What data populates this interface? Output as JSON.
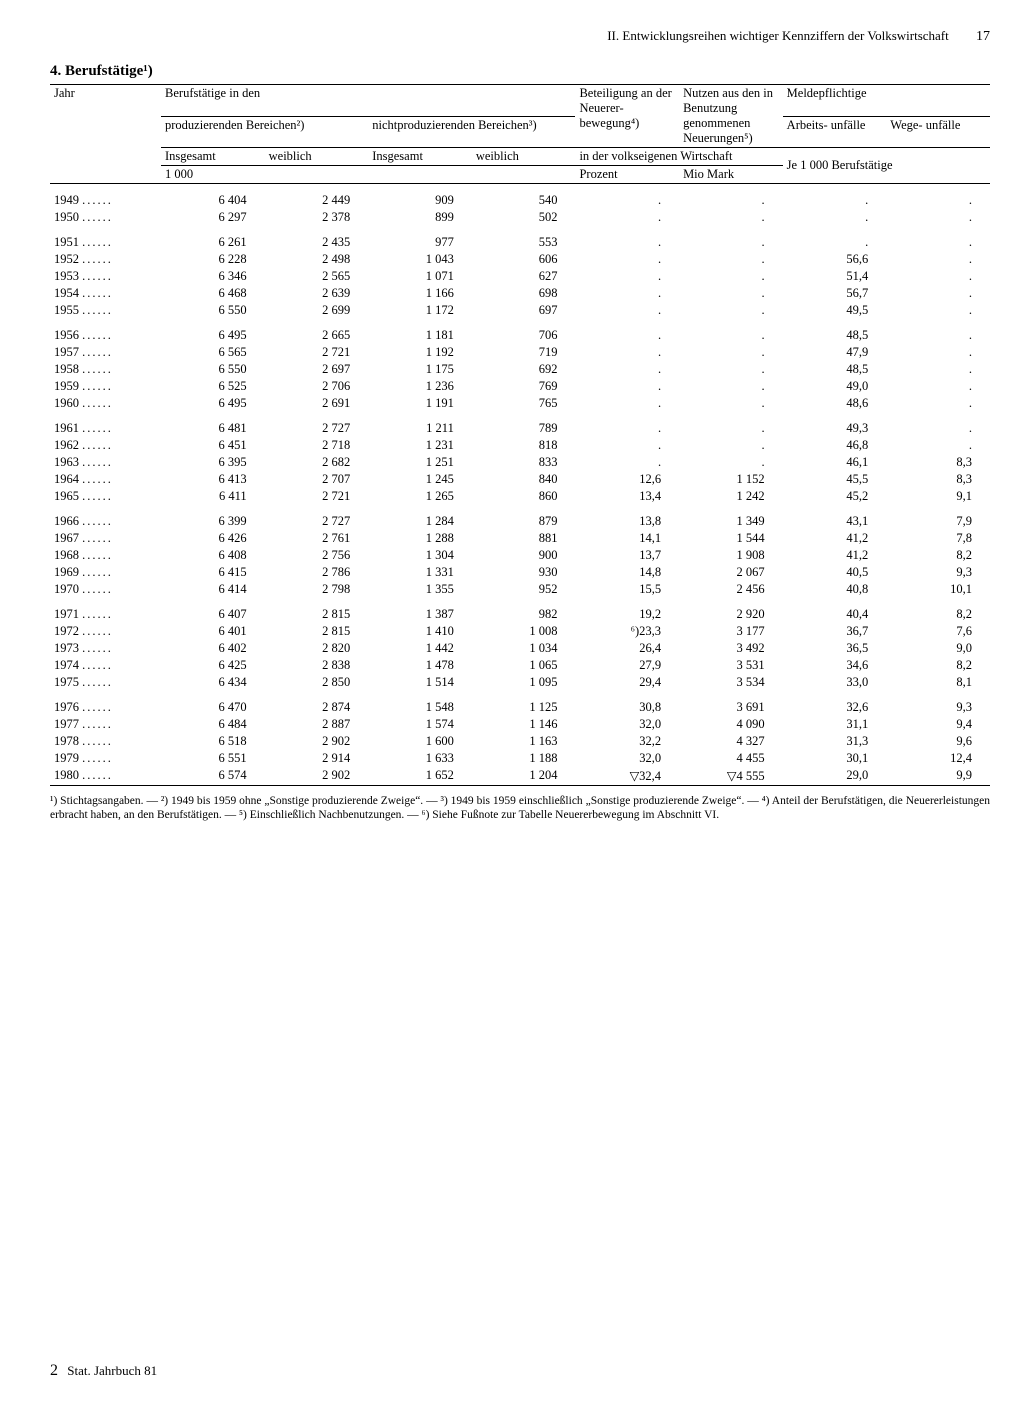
{
  "page": {
    "running_head": "II. Entwicklungsreihen wichtiger Kennziffern der Volkswirtschaft",
    "page_number": "17",
    "section_number": "4.",
    "section_title": "Berufstätige¹)",
    "footer_left": "Stat. Jahrbuch 81",
    "footer_prefix": "2"
  },
  "table": {
    "type": "table",
    "background_color": "#ffffff",
    "text_color": "#000000",
    "font_family": "Times New Roman",
    "body_fontsize": 12.5,
    "header": {
      "jahr": "Jahr",
      "berufst_in_den": "Berufstätige in den",
      "prod": "produzierenden Bereichen²)",
      "nichtprod": "nichtproduzierenden Bereichen³)",
      "insgesamt": "Insgesamt",
      "weiblich": "weiblich",
      "beteiligung": "Beteiligung an der Neuerer- bewegung⁴)",
      "nutzen": "Nutzen aus den in Benutzung genommenen Neuerungen⁵)",
      "meldepfl": "Meldepflichtige",
      "arbeitsunf": "Arbeits- unfälle",
      "wegeunf": "Wege- unfälle",
      "in_der_volks": "in der volkseigenen Wirtschaft",
      "tausend": "1 000",
      "prozent": "Prozent",
      "mio_mark": "Mio Mark",
      "je1000": "Je 1 000 Berufstätige"
    },
    "blocks": [
      [
        {
          "jahr": "1949",
          "p_ins": "6 404",
          "p_w": "2 449",
          "np_ins": "909",
          "np_w": "540",
          "bet": ".",
          "nutz": ".",
          "arb": ".",
          "weg": "."
        },
        {
          "jahr": "1950",
          "p_ins": "6 297",
          "p_w": "2 378",
          "np_ins": "899",
          "np_w": "502",
          "bet": ".",
          "nutz": ".",
          "arb": ".",
          "weg": "."
        }
      ],
      [
        {
          "jahr": "1951",
          "p_ins": "6 261",
          "p_w": "2 435",
          "np_ins": "977",
          "np_w": "553",
          "bet": ".",
          "nutz": ".",
          "arb": ".",
          "weg": "."
        },
        {
          "jahr": "1952",
          "p_ins": "6 228",
          "p_w": "2 498",
          "np_ins": "1 043",
          "np_w": "606",
          "bet": ".",
          "nutz": ".",
          "arb": "56,6",
          "weg": "."
        },
        {
          "jahr": "1953",
          "p_ins": "6 346",
          "p_w": "2 565",
          "np_ins": "1 071",
          "np_w": "627",
          "bet": ".",
          "nutz": ".",
          "arb": "51,4",
          "weg": "."
        },
        {
          "jahr": "1954",
          "p_ins": "6 468",
          "p_w": "2 639",
          "np_ins": "1 166",
          "np_w": "698",
          "bet": ".",
          "nutz": ".",
          "arb": "56,7",
          "weg": "."
        },
        {
          "jahr": "1955",
          "p_ins": "6 550",
          "p_w": "2 699",
          "np_ins": "1 172",
          "np_w": "697",
          "bet": ".",
          "nutz": ".",
          "arb": "49,5",
          "weg": "."
        }
      ],
      [
        {
          "jahr": "1956",
          "p_ins": "6 495",
          "p_w": "2 665",
          "np_ins": "1 181",
          "np_w": "706",
          "bet": ".",
          "nutz": ".",
          "arb": "48,5",
          "weg": "."
        },
        {
          "jahr": "1957",
          "p_ins": "6 565",
          "p_w": "2 721",
          "np_ins": "1 192",
          "np_w": "719",
          "bet": ".",
          "nutz": ".",
          "arb": "47,9",
          "weg": "."
        },
        {
          "jahr": "1958",
          "p_ins": "6 550",
          "p_w": "2 697",
          "np_ins": "1 175",
          "np_w": "692",
          "bet": ".",
          "nutz": ".",
          "arb": "48,5",
          "weg": "."
        },
        {
          "jahr": "1959",
          "p_ins": "6 525",
          "p_w": "2 706",
          "np_ins": "1 236",
          "np_w": "769",
          "bet": ".",
          "nutz": ".",
          "arb": "49,0",
          "weg": "."
        },
        {
          "jahr": "1960",
          "p_ins": "6 495",
          "p_w": "2 691",
          "np_ins": "1 191",
          "np_w": "765",
          "bet": ".",
          "nutz": ".",
          "arb": "48,6",
          "weg": "."
        }
      ],
      [
        {
          "jahr": "1961",
          "p_ins": "6 481",
          "p_w": "2 727",
          "np_ins": "1 211",
          "np_w": "789",
          "bet": ".",
          "nutz": ".",
          "arb": "49,3",
          "weg": "."
        },
        {
          "jahr": "1962",
          "p_ins": "6 451",
          "p_w": "2 718",
          "np_ins": "1 231",
          "np_w": "818",
          "bet": ".",
          "nutz": ".",
          "arb": "46,8",
          "weg": "."
        },
        {
          "jahr": "1963",
          "p_ins": "6 395",
          "p_w": "2 682",
          "np_ins": "1 251",
          "np_w": "833",
          "bet": ".",
          "nutz": ".",
          "arb": "46,1",
          "weg": "8,3"
        },
        {
          "jahr": "1964",
          "p_ins": "6 413",
          "p_w": "2 707",
          "np_ins": "1 245",
          "np_w": "840",
          "bet": "12,6",
          "nutz": "1 152",
          "arb": "45,5",
          "weg": "8,3"
        },
        {
          "jahr": "1965",
          "p_ins": "6 411",
          "p_w": "2 721",
          "np_ins": "1 265",
          "np_w": "860",
          "bet": "13,4",
          "nutz": "1 242",
          "arb": "45,2",
          "weg": "9,1"
        }
      ],
      [
        {
          "jahr": "1966",
          "p_ins": "6 399",
          "p_w": "2 727",
          "np_ins": "1 284",
          "np_w": "879",
          "bet": "13,8",
          "nutz": "1 349",
          "arb": "43,1",
          "weg": "7,9"
        },
        {
          "jahr": "1967",
          "p_ins": "6 426",
          "p_w": "2 761",
          "np_ins": "1 288",
          "np_w": "881",
          "bet": "14,1",
          "nutz": "1 544",
          "arb": "41,2",
          "weg": "7,8"
        },
        {
          "jahr": "1968",
          "p_ins": "6 408",
          "p_w": "2 756",
          "np_ins": "1 304",
          "np_w": "900",
          "bet": "13,7",
          "nutz": "1 908",
          "arb": "41,2",
          "weg": "8,2"
        },
        {
          "jahr": "1969",
          "p_ins": "6 415",
          "p_w": "2 786",
          "np_ins": "1 331",
          "np_w": "930",
          "bet": "14,8",
          "nutz": "2 067",
          "arb": "40,5",
          "weg": "9,3"
        },
        {
          "jahr": "1970",
          "p_ins": "6 414",
          "p_w": "2 798",
          "np_ins": "1 355",
          "np_w": "952",
          "bet": "15,5",
          "nutz": "2 456",
          "arb": "40,8",
          "weg": "10,1"
        }
      ],
      [
        {
          "jahr": "1971",
          "p_ins": "6 407",
          "p_w": "2 815",
          "np_ins": "1 387",
          "np_w": "982",
          "bet": "19,2",
          "nutz": "2 920",
          "arb": "40,4",
          "weg": "8,2"
        },
        {
          "jahr": "1972",
          "p_ins": "6 401",
          "p_w": "2 815",
          "np_ins": "1 410",
          "np_w": "1 008",
          "bet": "⁶)23,3",
          "nutz": "3 177",
          "arb": "36,7",
          "weg": "7,6"
        },
        {
          "jahr": "1973",
          "p_ins": "6 402",
          "p_w": "2 820",
          "np_ins": "1 442",
          "np_w": "1 034",
          "bet": "26,4",
          "nutz": "3 492",
          "arb": "36,5",
          "weg": "9,0"
        },
        {
          "jahr": "1974",
          "p_ins": "6 425",
          "p_w": "2 838",
          "np_ins": "1 478",
          "np_w": "1 065",
          "bet": "27,9",
          "nutz": "3 531",
          "arb": "34,6",
          "weg": "8,2"
        },
        {
          "jahr": "1975",
          "p_ins": "6 434",
          "p_w": "2 850",
          "np_ins": "1 514",
          "np_w": "1 095",
          "bet": "29,4",
          "nutz": "3 534",
          "arb": "33,0",
          "weg": "8,1"
        }
      ],
      [
        {
          "jahr": "1976",
          "p_ins": "6 470",
          "p_w": "2 874",
          "np_ins": "1 548",
          "np_w": "1 125",
          "bet": "30,8",
          "nutz": "3 691",
          "arb": "32,6",
          "weg": "9,3"
        },
        {
          "jahr": "1977",
          "p_ins": "6 484",
          "p_w": "2 887",
          "np_ins": "1 574",
          "np_w": "1 146",
          "bet": "32,0",
          "nutz": "4 090",
          "arb": "31,1",
          "weg": "9,4"
        },
        {
          "jahr": "1978",
          "p_ins": "6 518",
          "p_w": "2 902",
          "np_ins": "1 600",
          "np_w": "1 163",
          "bet": "32,2",
          "nutz": "4 327",
          "arb": "31,3",
          "weg": "9,6"
        },
        {
          "jahr": "1979",
          "p_ins": "6 551",
          "p_w": "2 914",
          "np_ins": "1 633",
          "np_w": "1 188",
          "bet": "32,0",
          "nutz": "4 455",
          "arb": "30,1",
          "weg": "12,4"
        },
        {
          "jahr": "1980",
          "p_ins": "6 574",
          "p_w": "2 902",
          "np_ins": "1 652",
          "np_w": "1 204",
          "bet": "▽32,4",
          "nutz": "▽4 555",
          "arb": "29,0",
          "weg": "9,9"
        }
      ]
    ]
  },
  "footnotes": "¹) Stichtagsangaben. — ²) 1949 bis 1959 ohne „Sonstige produzierende Zweige“. — ³) 1949 bis 1959 einschließlich „Sonstige produzierende Zweige“. — ⁴) Anteil der Berufstätigen, die Neuererleistungen erbracht haben, an den Berufstätigen. — ⁵) Einschließlich Nachbenutzungen. — ⁶) Siehe Fußnote zur Tabelle Neuererbewegung im Abschnitt VI."
}
